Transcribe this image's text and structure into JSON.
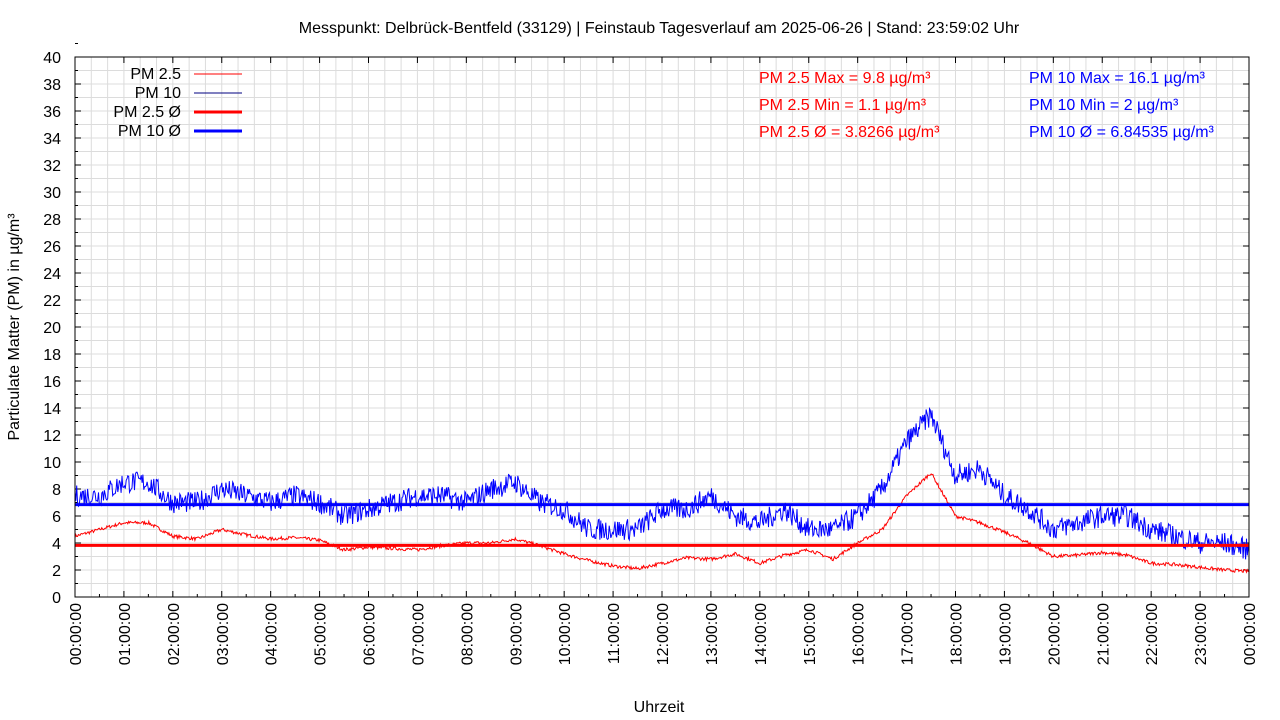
{
  "chart_data": {
    "type": "line",
    "title": "Messpunkt: Delbrück-Bentfeld (33129) | Feinstaub Tagesverlauf am 2025-06-26 | Stand: 23:59:02 Uhr",
    "xlabel": "Uhrzeit",
    "ylabel": "Particulate Matter (PM) in µg/m³",
    "ylim": [
      0,
      40
    ],
    "yticks": [
      "0",
      "2",
      "4",
      "6",
      "8",
      "10",
      "12",
      "14",
      "16",
      "18",
      "20",
      "22",
      "24",
      "26",
      "28",
      "30",
      "32",
      "34",
      "36",
      "38",
      "40"
    ],
    "xlim_hours": [
      0,
      24
    ],
    "xticks": [
      "00:00:00",
      "01:00:00",
      "02:00:00",
      "03:00:00",
      "04:00:00",
      "05:00:00",
      "06:00:00",
      "07:00:00",
      "08:00:00",
      "09:00:00",
      "10:00:00",
      "11:00:00",
      "12:00:00",
      "13:00:00",
      "14:00:00",
      "15:00:00",
      "16:00:00",
      "17:00:00",
      "18:00:00",
      "19:00:00",
      "20:00:00",
      "21:00:00",
      "22:00:00",
      "23:00:00",
      "00:00:00"
    ],
    "grid": true,
    "legend_position": "top-left",
    "x_hours_step": 0.5,
    "series": [
      {
        "name": "PM 2.5",
        "color": "#ff0000",
        "values": [
          4.5,
          5,
          5.5,
          5.5,
          4.5,
          4.3,
          5,
          4.6,
          4.3,
          4.4,
          4.2,
          3.5,
          3.7,
          3.6,
          3.5,
          3.8,
          4,
          4,
          4.3,
          3.8,
          3.2,
          2.7,
          2.3,
          2.1,
          2.5,
          2.9,
          2.8,
          3.2,
          2.5,
          3.1,
          3.5,
          2.8,
          4,
          5,
          7.5,
          9.2,
          6,
          5.5,
          4.8,
          4,
          3,
          3.1,
          3.3,
          3.1,
          2.5,
          2.4,
          2.2,
          2,
          1.9
        ]
      },
      {
        "name": "PM 10",
        "color": "#0000ff",
        "legend_color": "#000080",
        "values": [
          7.5,
          7.5,
          8.5,
          8.5,
          7,
          7,
          8,
          7.5,
          7,
          7.5,
          7,
          6,
          6.5,
          7,
          7.5,
          7.5,
          7,
          8,
          8.5,
          7,
          6.5,
          5,
          5,
          5,
          6.5,
          6.5,
          7.5,
          6,
          5.5,
          6.5,
          5,
          5,
          6,
          8,
          11.5,
          13.5,
          9,
          9.5,
          7.5,
          6.5,
          5,
          5.5,
          6,
          6,
          5,
          4.5,
          4,
          4,
          3.5
        ]
      }
    ],
    "averages": [
      {
        "name": "PM 2.5 Ø",
        "color": "#ff0000",
        "value": 3.8266
      },
      {
        "name": "PM 10 Ø",
        "color": "#0000ff",
        "value": 6.84535
      }
    ],
    "annotations": {
      "pm25": [
        "PM 2.5 Max = 9.8 µg/m³",
        "PM 2.5 Min = 1.1 µg/m³",
        "PM 2.5 Ø = 3.8266 µg/m³"
      ],
      "pm10": [
        "PM 10 Max = 16.1 µg/m³",
        "PM 10 Min = 2 µg/m³",
        "PM 10 Ø = 6.84535 µg/m³"
      ]
    }
  }
}
